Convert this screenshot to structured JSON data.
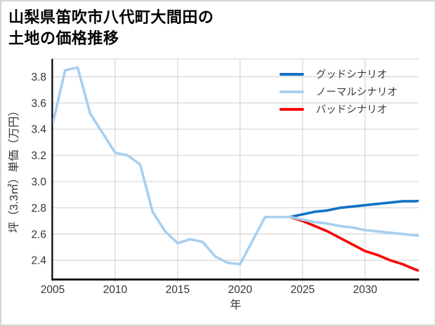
{
  "chart_data": {
    "type": "line",
    "title_lines": [
      "山梨県笛吹市八代町大間田の",
      "土地の価格推移"
    ],
    "xlabel": "年",
    "ylabel": "坪（3.3㎡）単価（万円）",
    "x_range": [
      2005,
      2034.3
    ],
    "y_range": [
      2.254,
      3.936
    ],
    "grid": true,
    "legend_position": "top-right-inside",
    "grid_color": "#d9d9d9",
    "spine_color": "#000000",
    "x_ticks": {
      "values": [
        2005,
        2010,
        2015,
        2020,
        2025,
        2030
      ],
      "labels": [
        "2005",
        "2010",
        "2015",
        "2020",
        "2025",
        "2030"
      ]
    },
    "y_ticks": {
      "values": [
        2.4,
        2.6,
        2.8,
        3.0,
        3.2,
        3.4,
        3.6,
        3.8
      ],
      "labels": [
        "2.4",
        "2.6",
        "2.8",
        "3.0",
        "3.2",
        "3.4",
        "3.6",
        "3.8"
      ]
    },
    "series": [
      {
        "name": "グッドシナリオ",
        "color": "#1072c4",
        "x": [
          2024,
          2025,
          2026,
          2027,
          2028,
          2029,
          2030,
          2031,
          2032,
          2033,
          2034,
          2035
        ],
        "y": [
          2.73,
          2.75,
          2.77,
          2.78,
          2.8,
          2.81,
          2.82,
          2.83,
          2.84,
          2.85,
          2.85,
          2.86
        ]
      },
      {
        "name": "ノーマルシナリオ",
        "color": "#a8cff0",
        "x": [
          2005,
          2006,
          2007,
          2008,
          2009,
          2010,
          2011,
          2012,
          2013,
          2014,
          2015,
          2016,
          2017,
          2018,
          2019,
          2020,
          2021,
          2022,
          2023,
          2024,
          2025,
          2026,
          2027,
          2028,
          2029,
          2030,
          2031,
          2032,
          2033,
          2034,
          2035
        ],
        "y": [
          3.44,
          3.85,
          3.87,
          3.52,
          3.37,
          3.22,
          3.2,
          3.13,
          2.77,
          2.62,
          2.53,
          2.56,
          2.54,
          2.43,
          2.38,
          2.37,
          2.55,
          2.73,
          2.73,
          2.73,
          2.71,
          2.69,
          2.68,
          2.66,
          2.65,
          2.63,
          2.62,
          2.61,
          2.6,
          2.59,
          2.58
        ]
      },
      {
        "name": "バッドシナリオ",
        "color": "#f90505",
        "x": [
          2024,
          2025,
          2026,
          2027,
          2028,
          2029,
          2030,
          2031,
          2032,
          2033,
          2034,
          2035
        ],
        "y": [
          2.73,
          2.7,
          2.66,
          2.62,
          2.57,
          2.52,
          2.47,
          2.44,
          2.4,
          2.37,
          2.33,
          2.3
        ]
      }
    ]
  }
}
